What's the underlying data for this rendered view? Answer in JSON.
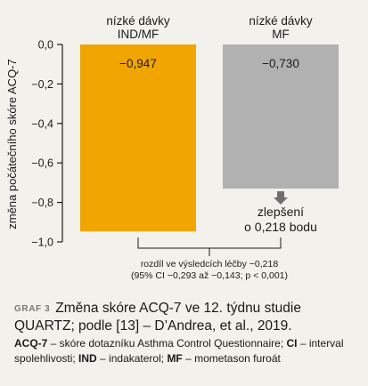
{
  "chart_data": {
    "type": "bar",
    "ylabel": "změna počátečního skóre ACQ-7",
    "ylim": [
      -1.0,
      0.0
    ],
    "yticks": [
      0.0,
      -0.2,
      -0.4,
      -0.6,
      -0.8,
      -1.0
    ],
    "ytick_labels": [
      "0,0",
      "−0,2",
      "−0,4",
      "−0,6",
      "−0,8",
      "−1,0"
    ],
    "categories": [
      "nízké dávky IND/MF",
      "nízké dávky MF"
    ],
    "category_lines": [
      [
        "nízké dávky",
        "IND/MF"
      ],
      [
        "nízké dávky",
        "MF"
      ]
    ],
    "values": [
      -0.947,
      -0.73
    ],
    "value_labels": [
      "−0,947",
      "−0,730"
    ],
    "colors": [
      "#f0a500",
      "#b1b1b1"
    ],
    "grid": false,
    "annotations": {
      "improvement_lines": [
        "zlepšení",
        "o 0,218 bodu"
      ],
      "difference_lines": [
        "rozdíl ve výsledcích léčby −0,218",
        "(95% CI −0,293 až −0,143; p < 0,001)"
      ]
    }
  },
  "caption": {
    "tag": "GRAF 3",
    "text": "Změna skóre ACQ-7 ve 12. týdnu studie QUARTZ; podle [13] – D’Andrea, et al., 2019."
  },
  "notes": {
    "items": [
      {
        "abbr": "ACQ-7",
        "def": " – skóre dotazníku Asthma Control Questionnaire; "
      },
      {
        "abbr": "CI",
        "def": " – interval spolehlivosti; "
      },
      {
        "abbr": "IND",
        "def": " – indakaterol; "
      },
      {
        "abbr": "MF",
        "def": " – mometason furoát"
      }
    ]
  }
}
